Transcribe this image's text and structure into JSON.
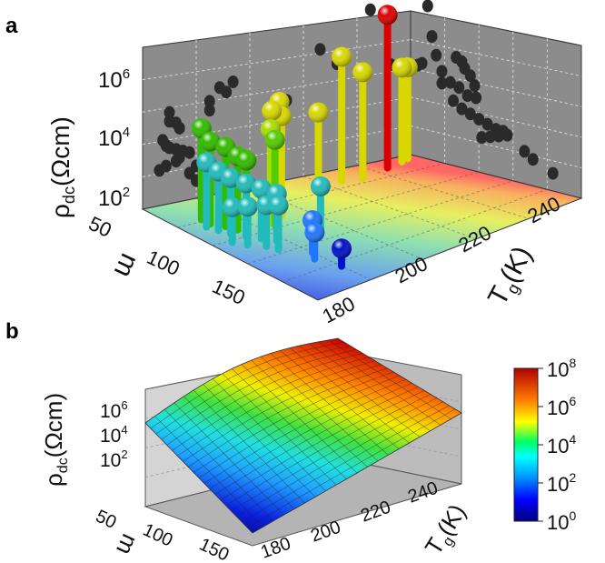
{
  "chart_data": [
    {
      "panel": "a",
      "type": "scatter",
      "zlabel": {
        "main": "ρ",
        "sub": "dc",
        "unit": "(Ωcm)"
      },
      "xlabel": "m",
      "ylabel": {
        "main": "T",
        "sub": "g",
        "unit": "(K)"
      },
      "x_ticks": [
        "50",
        "100",
        "150"
      ],
      "y_ticks": [
        "180",
        "200",
        "220",
        "240"
      ],
      "z_ticks": [
        {
          "base": "10",
          "exp": "2"
        },
        {
          "base": "10",
          "exp": "4"
        },
        {
          "base": "10",
          "exp": "6"
        }
      ],
      "xlim": [
        50,
        170
      ],
      "ylim": [
        170,
        250
      ],
      "zlim_log10": [
        1.4,
        6.9
      ],
      "grid": true,
      "points": [
        {
          "m": 62,
          "tg": 238,
          "log_rho": 6.6,
          "color": "#dd0000"
        },
        {
          "m": 65,
          "tg": 223,
          "log_rho": 5.6,
          "color": "#d8d800"
        },
        {
          "m": 68,
          "tg": 228,
          "log_rho": 5.0,
          "color": "#d8d800"
        },
        {
          "m": 72,
          "tg": 213,
          "log_rho": 4.1,
          "color": "#d8d800"
        },
        {
          "m": 58,
          "tg": 244,
          "log_rho": 4.6,
          "color": "#d8d800"
        },
        {
          "m": 55,
          "tg": 247,
          "log_rho": 4.5,
          "color": "#d8d800"
        },
        {
          "m": 82,
          "tg": 197,
          "log_rho": 5.1,
          "color": "#d8d800"
        },
        {
          "m": 86,
          "tg": 193,
          "log_rho": 5.0,
          "color": "#d8d800"
        },
        {
          "m": 88,
          "tg": 195,
          "log_rho": 4.8,
          "color": "#d8d800"
        },
        {
          "m": 92,
          "tg": 190,
          "log_rho": 4.6,
          "color": "#aadd00"
        },
        {
          "m": 95,
          "tg": 190,
          "log_rho": 4.3,
          "color": "#55cc00"
        },
        {
          "m": 72,
          "tg": 178,
          "log_rho": 4.5,
          "color": "#33bb00"
        },
        {
          "m": 78,
          "tg": 178,
          "log_rho": 4.2,
          "color": "#33bb00"
        },
        {
          "m": 84,
          "tg": 180,
          "log_rho": 4.1,
          "color": "#33bb00"
        },
        {
          "m": 90,
          "tg": 181,
          "log_rho": 3.9,
          "color": "#33bb00"
        },
        {
          "m": 96,
          "tg": 181,
          "log_rho": 3.9,
          "color": "#33bb00"
        },
        {
          "m": 80,
          "tg": 176,
          "log_rho": 3.6,
          "color": "#22bbbb"
        },
        {
          "m": 86,
          "tg": 177,
          "log_rho": 3.4,
          "color": "#22bbbb"
        },
        {
          "m": 92,
          "tg": 178,
          "log_rho": 3.3,
          "color": "#22bbbb"
        },
        {
          "m": 98,
          "tg": 180,
          "log_rho": 3.2,
          "color": "#22bbbb"
        },
        {
          "m": 104,
          "tg": 182,
          "log_rho": 3.1,
          "color": "#22bbbb"
        },
        {
          "m": 110,
          "tg": 184,
          "log_rho": 3.0,
          "color": "#22bbbb"
        },
        {
          "m": 100,
          "tg": 175,
          "log_rho": 2.6,
          "color": "#22bbbb"
        },
        {
          "m": 106,
          "tg": 177,
          "log_rho": 2.7,
          "color": "#22bbbb"
        },
        {
          "m": 112,
          "tg": 180,
          "log_rho": 2.8,
          "color": "#22bbbb"
        },
        {
          "m": 118,
          "tg": 181,
          "log_rho": 2.9,
          "color": "#22bbbb"
        },
        {
          "m": 115,
          "tg": 195,
          "log_rho": 3.0,
          "color": "#22bbbb"
        },
        {
          "m": 130,
          "tg": 186,
          "log_rho": 2.5,
          "color": "#1f77ff"
        },
        {
          "m": 136,
          "tg": 184,
          "log_rho": 2.3,
          "color": "#1f77ff"
        },
        {
          "m": 150,
          "tg": 186,
          "log_rho": 2.0,
          "color": "#0011cc"
        }
      ]
    },
    {
      "panel": "b",
      "type": "surface",
      "zlabel": {
        "main": "ρ",
        "sub": "dc",
        "unit": "(Ωcm)"
      },
      "xlabel": "m",
      "ylabel": {
        "main": "T",
        "sub": "g",
        "unit": "(K)"
      },
      "x_ticks": [
        "50",
        "100",
        "150"
      ],
      "y_ticks": [
        "180",
        "200",
        "220",
        "240"
      ],
      "z_ticks": [
        {
          "base": "10",
          "exp": "2"
        },
        {
          "base": "10",
          "exp": "4"
        },
        {
          "base": "10",
          "exp": "6"
        }
      ],
      "colorbar_ticks": [
        {
          "base": "10",
          "exp": "0"
        },
        {
          "base": "10",
          "exp": "2"
        },
        {
          "base": "10",
          "exp": "4"
        },
        {
          "base": "10",
          "exp": "6"
        },
        {
          "base": "10",
          "exp": "8"
        }
      ],
      "colorbar_range_log10": [
        0,
        8
      ],
      "grid": true
    }
  ]
}
